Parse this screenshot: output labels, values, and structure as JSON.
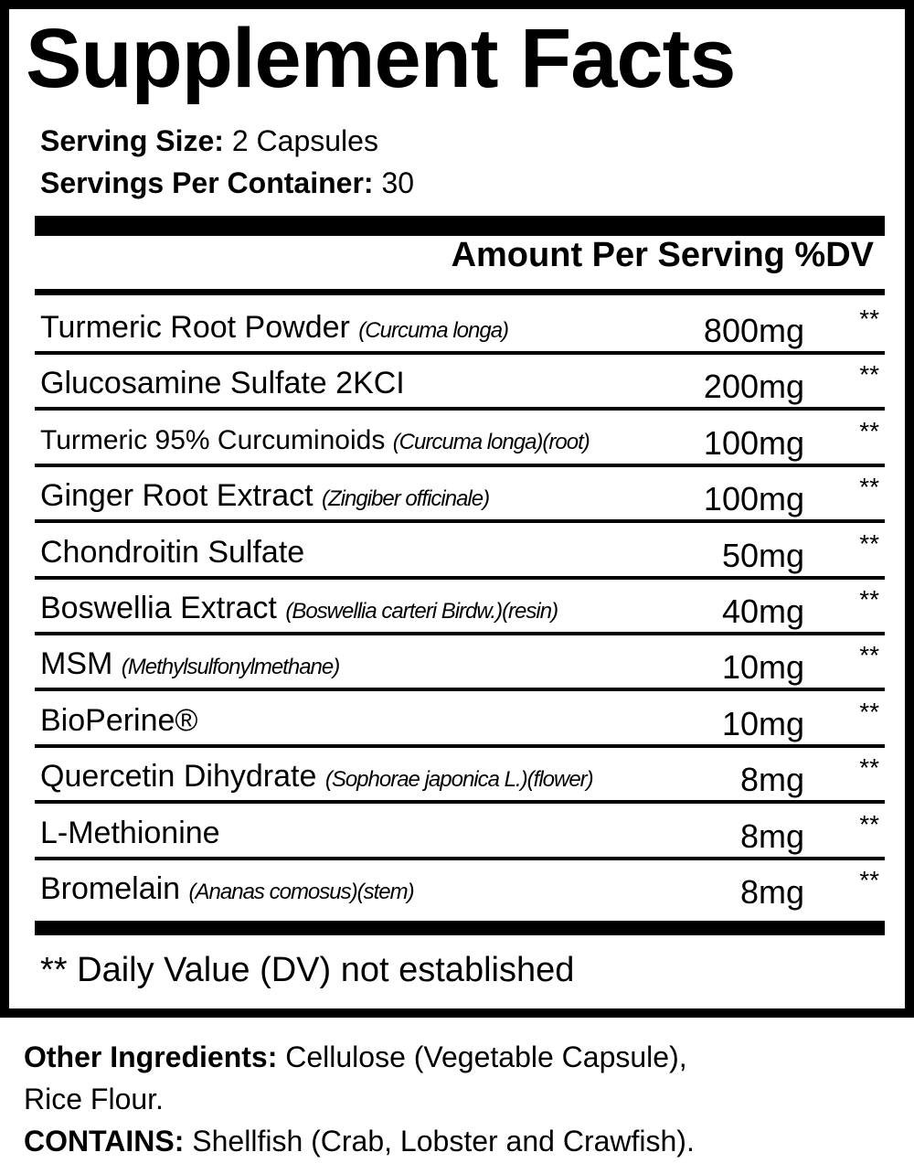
{
  "title": "Supplement Facts",
  "serving_size": {
    "label": "Serving Size:",
    "value": "2 Capsules"
  },
  "servings_per_container": {
    "label": "Servings Per Container:",
    "value": "30"
  },
  "amount_header": "Amount Per Serving %DV",
  "ingredients": [
    {
      "name": "Turmeric Root Powder",
      "latin": "(Curcuma longa)",
      "amount": "800mg",
      "dv": "**"
    },
    {
      "name": "Glucosamine Sulfate 2KCI",
      "latin": "",
      "amount": "200mg",
      "dv": "**"
    },
    {
      "name": "Turmeric 95% Curcuminoids",
      "latin": "(Curcuma longa)(root)",
      "amount": "100mg",
      "dv": "**"
    },
    {
      "name": "Ginger Root Extract",
      "latin": "(Zingiber officinale)",
      "amount": "100mg",
      "dv": "**"
    },
    {
      "name": "Chondroitin Sulfate",
      "latin": "",
      "amount": "50mg",
      "dv": "**"
    },
    {
      "name": "Boswellia Extract",
      "latin": "(Boswellia carteri Birdw.)(resin)",
      "amount": "40mg",
      "dv": "**"
    },
    {
      "name": "MSM",
      "latin": "(Methylsulfonylmethane)",
      "amount": "10mg",
      "dv": "**"
    },
    {
      "name": "BioPerine®",
      "latin": "",
      "amount": "10mg",
      "dv": "**"
    },
    {
      "name": "Quercetin Dihydrate",
      "latin": "(Sophorae japonica L.)(flower)",
      "amount": "8mg",
      "dv": "**"
    },
    {
      "name": "L-Methionine",
      "latin": "",
      "amount": "8mg",
      "dv": "**"
    },
    {
      "name": "Bromelain",
      "latin": "(Ananas comosus)(stem)",
      "amount": "8mg",
      "dv": "**"
    }
  ],
  "footnote": "** Daily Value (DV) not established",
  "other_ingredients": {
    "label": "Other Ingredients:",
    "value": "Cellulose (Vegetable Capsule),",
    "value_line2": "Rice Flour."
  },
  "contains": {
    "label": "CONTAINS:",
    "value": "Shellfish (Crab, Lobster and Crawfish)."
  }
}
